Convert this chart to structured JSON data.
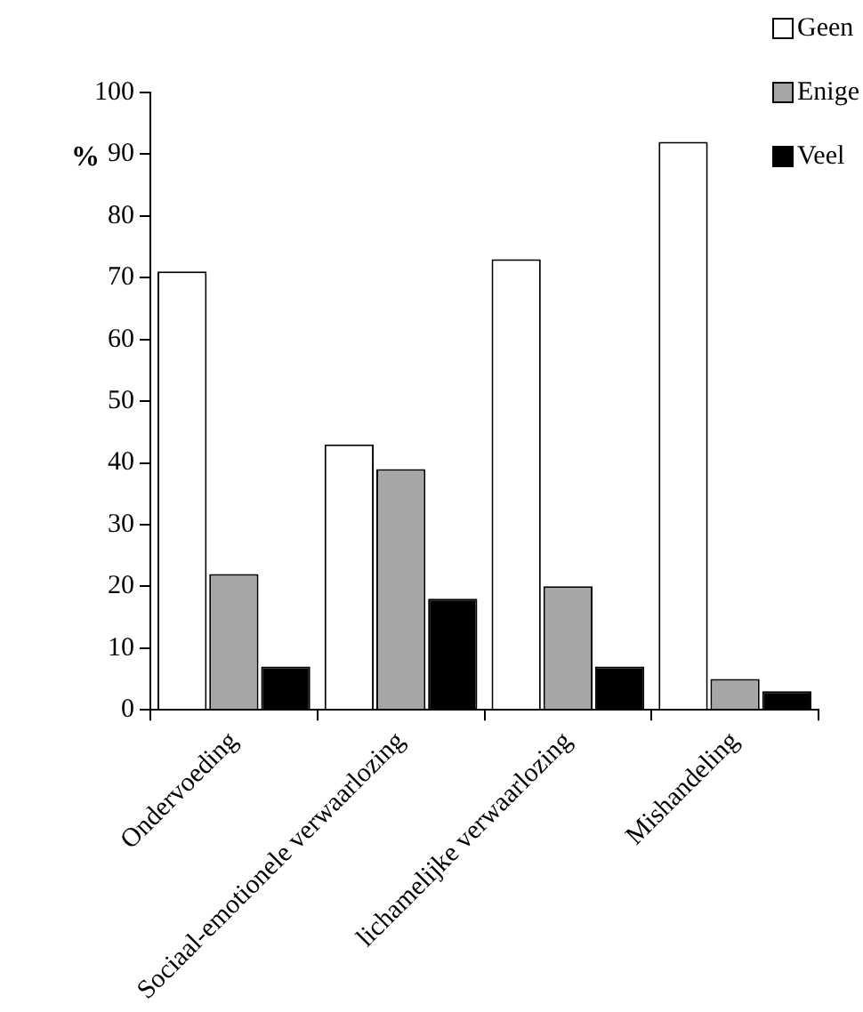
{
  "chart_data": {
    "type": "bar",
    "ylabel": "%",
    "categories": [
      "Ondervoeding",
      "Sociaal-emotionele verwaarlozing",
      "lichamelijke verwaarlozing",
      "Mishandeling"
    ],
    "series": [
      {
        "name": "Geen",
        "color": "#ffffff",
        "values": [
          71,
          43,
          73,
          92
        ]
      },
      {
        "name": "Enige",
        "color": "#a6a6a6",
        "values": [
          22,
          39,
          20,
          5
        ]
      },
      {
        "name": "Veel",
        "color": "#000000",
        "values": [
          7,
          18,
          7,
          3
        ]
      }
    ],
    "ylim": [
      0,
      100
    ],
    "yticks": [
      0,
      10,
      20,
      30,
      40,
      50,
      60,
      70,
      80,
      90,
      100
    ],
    "grid": false,
    "legend": "top right"
  }
}
